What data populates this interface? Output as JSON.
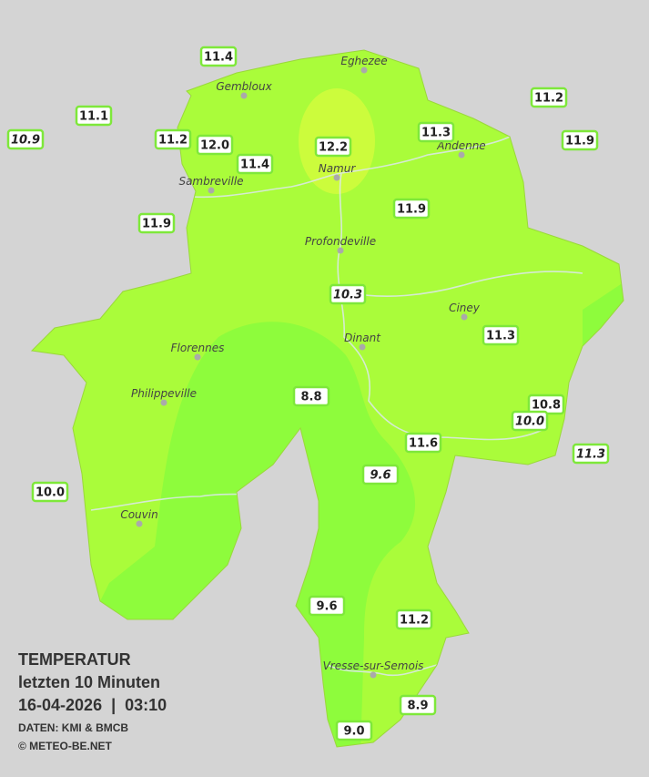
{
  "title": {
    "line1": "TEMPERATUR",
    "line2": "letzten 10 Minuten",
    "line3": "16-04-2026  |  03:10",
    "source": "DATEN: KMI & BMCB",
    "copyright": "© METEO-BE.NET"
  },
  "cities": [
    "Eghezee",
    "Gembloux",
    "Andenne",
    "Namur",
    "Sambreville",
    "Profondeville",
    "Ciney",
    "Dinant",
    "Florennes",
    "Philippeville",
    "Couvin",
    "Vresse-sur-Semois"
  ],
  "stations": [
    "11.4",
    "11.1",
    "10.9",
    "11.2",
    "12.0",
    "11.4",
    "12.2",
    "11.3",
    "11.2",
    "11.9",
    "11.9",
    "11.9",
    "10.3",
    "11.3",
    "8.8",
    "10.8",
    "10.0",
    "11.6",
    "11.3",
    "9.6",
    "10.0",
    "9.6",
    "11.2",
    "8.9",
    "9.0"
  ]
}
